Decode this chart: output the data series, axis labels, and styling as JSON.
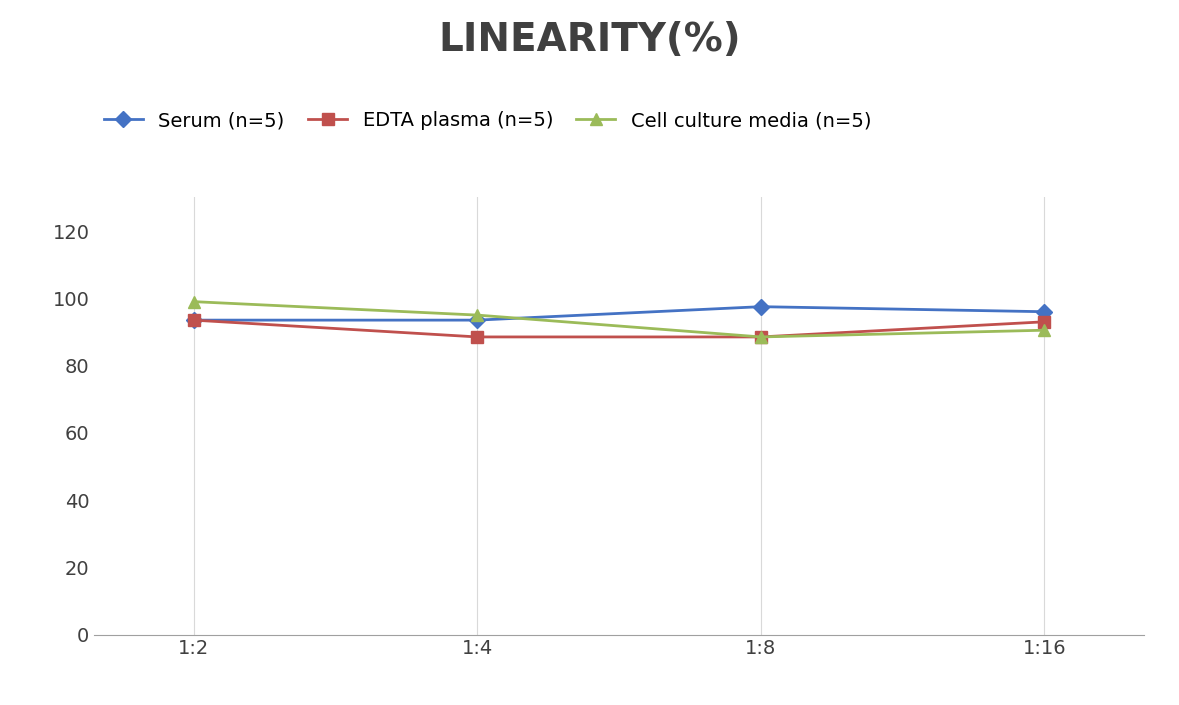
{
  "title": "LINEARITY(%)",
  "x_labels": [
    "1:2",
    "1:4",
    "1:8",
    "1:16"
  ],
  "x_positions": [
    0,
    1,
    2,
    3
  ],
  "serum": [
    93.5,
    93.5,
    97.5,
    96.0
  ],
  "edta_plasma": [
    93.5,
    88.5,
    88.5,
    93.0
  ],
  "cell_culture": [
    99.0,
    95.0,
    88.5,
    90.5
  ],
  "serum_color": "#4472C4",
  "edta_color": "#C0504D",
  "cell_color": "#9BBB59",
  "serum_label": "Serum (n=5)",
  "edta_label": "EDTA plasma (n=5)",
  "cell_label": "Cell culture media (n=5)",
  "ylim": [
    0,
    130
  ],
  "yticks": [
    0,
    20,
    40,
    60,
    80,
    100,
    120
  ],
  "title_fontsize": 28,
  "legend_fontsize": 14,
  "tick_fontsize": 14,
  "title_color": "#404040",
  "background_color": "#ffffff",
  "grid_color": "#d9d9d9"
}
